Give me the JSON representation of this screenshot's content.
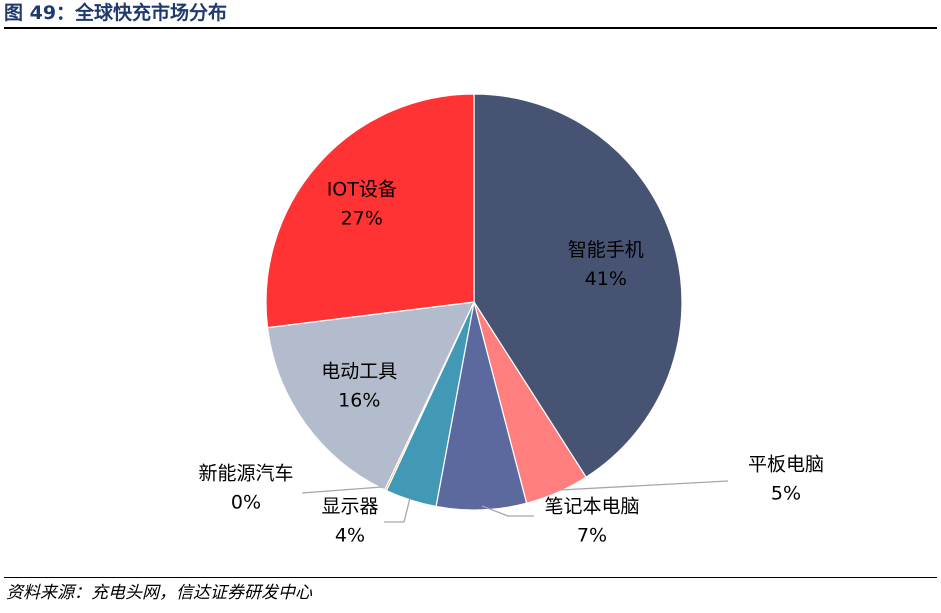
{
  "figure": {
    "title": "图 49：全球快充市场分布",
    "source": "资料来源：充电头网，信达证券研发中心"
  },
  "chart_data": {
    "type": "pie",
    "title": "",
    "slices": [
      {
        "label": "智能手机",
        "value": 41,
        "display": "41%",
        "color": "#475372"
      },
      {
        "label": "平板电脑",
        "value": 5,
        "display": "5%",
        "color": "#ff7f7f"
      },
      {
        "label": "笔记本电脑",
        "value": 7,
        "display": "7%",
        "color": "#5b699e"
      },
      {
        "label": "显示器",
        "value": 4,
        "display": "4%",
        "color": "#4299b5"
      },
      {
        "label": "新能源汽车",
        "value": 0.15,
        "display": "0%",
        "color": "#f3a04a"
      },
      {
        "label": "电动工具",
        "value": 16,
        "display": "16%",
        "color": "#b3bccc"
      },
      {
        "label": "IOT设备",
        "value": 27,
        "display": "27%",
        "color": "#ff3333"
      }
    ],
    "label_color_inside": "#000000",
    "leader_line_color": "#a6a6a6",
    "start_angle": "12 o'clock",
    "direction": "clockwise",
    "legend": "none"
  }
}
